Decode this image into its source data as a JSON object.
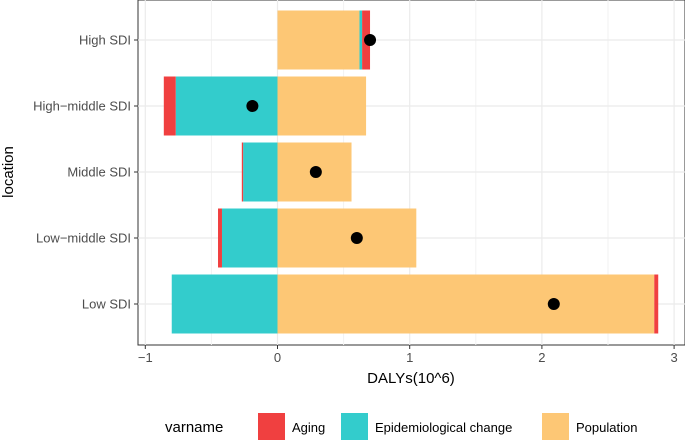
{
  "chart_data": {
    "type": "bar",
    "orientation": "horizontal",
    "stacked": "diverging",
    "xlabel": "DALYs(10^6)",
    "ylabel": "location",
    "xlim": [
      -1.0,
      3.0
    ],
    "xticks": [
      -1,
      0,
      1,
      2,
      3
    ],
    "xtick_labels": [
      "−1",
      "0",
      "1",
      "2",
      "3"
    ],
    "grid": true,
    "legend_position": "bottom",
    "legend_title": "varname",
    "categories": [
      "High SDI",
      "High−middle SDI",
      "Middle SDI",
      "Low−middle SDI",
      "Low SDI"
    ],
    "series": [
      {
        "name": "Aging",
        "color": "#F04040",
        "values": [
          0.06,
          -0.09,
          -0.01,
          -0.03,
          0.03
        ]
      },
      {
        "name": "Epidemiological change",
        "color": "#33CCCC",
        "values": [
          0.02,
          -0.77,
          -0.26,
          -0.42,
          -0.8
        ]
      },
      {
        "name": "Population",
        "color": "#FDC775",
        "values": [
          0.62,
          0.67,
          0.56,
          1.05,
          2.85
        ]
      }
    ],
    "totals": [
      0.7,
      -0.19,
      0.29,
      0.6,
      2.09
    ]
  }
}
